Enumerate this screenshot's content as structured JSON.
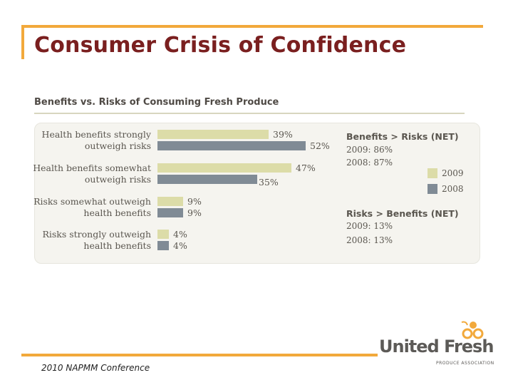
{
  "slide": {
    "title": "Consumer Crisis of Confidence",
    "footer": "2010 NAPMM Conference",
    "colors": {
      "accent": "#f2a93b",
      "title": "#7a1f1f",
      "series_2009": "#dcdca8",
      "series_2008": "#808b95"
    }
  },
  "logo": {
    "name": "United Fresh",
    "subtitle": "PRODUCE ASSOCIATION"
  },
  "summary": {
    "benefits_head": "Benefits > Risks (NET)",
    "benefits_2009": "2009: 86%",
    "benefits_2008": "2008: 87%",
    "risks_head": "Risks > Benefits (NET)",
    "risks_2009": "2009: 13%",
    "risks_2008": "2008: 13%"
  },
  "chart_data": {
    "type": "bar",
    "orientation": "horizontal",
    "title": "Benefits vs. Risks of Consuming Fresh Produce",
    "categories": [
      [
        "Health benefits strongly",
        "outweigh risks"
      ],
      [
        "Health benefits somewhat",
        "outweigh risks"
      ],
      [
        "Risks somewhat outweigh",
        "health benefits"
      ],
      [
        "Risks strongly outweigh",
        "health benefits"
      ]
    ],
    "series": [
      {
        "name": "2009",
        "values": [
          39,
          47,
          9,
          4
        ],
        "labels": [
          "39%",
          "47%",
          "9%",
          "4%"
        ],
        "color": "#dcdca8"
      },
      {
        "name": "2008",
        "values": [
          52,
          35,
          9,
          4
        ],
        "labels": [
          "52%",
          "35%",
          "9%",
          "4%"
        ],
        "color": "#808b95"
      }
    ],
    "xlim": [
      0,
      52
    ],
    "legend": "right",
    "grid": false
  }
}
